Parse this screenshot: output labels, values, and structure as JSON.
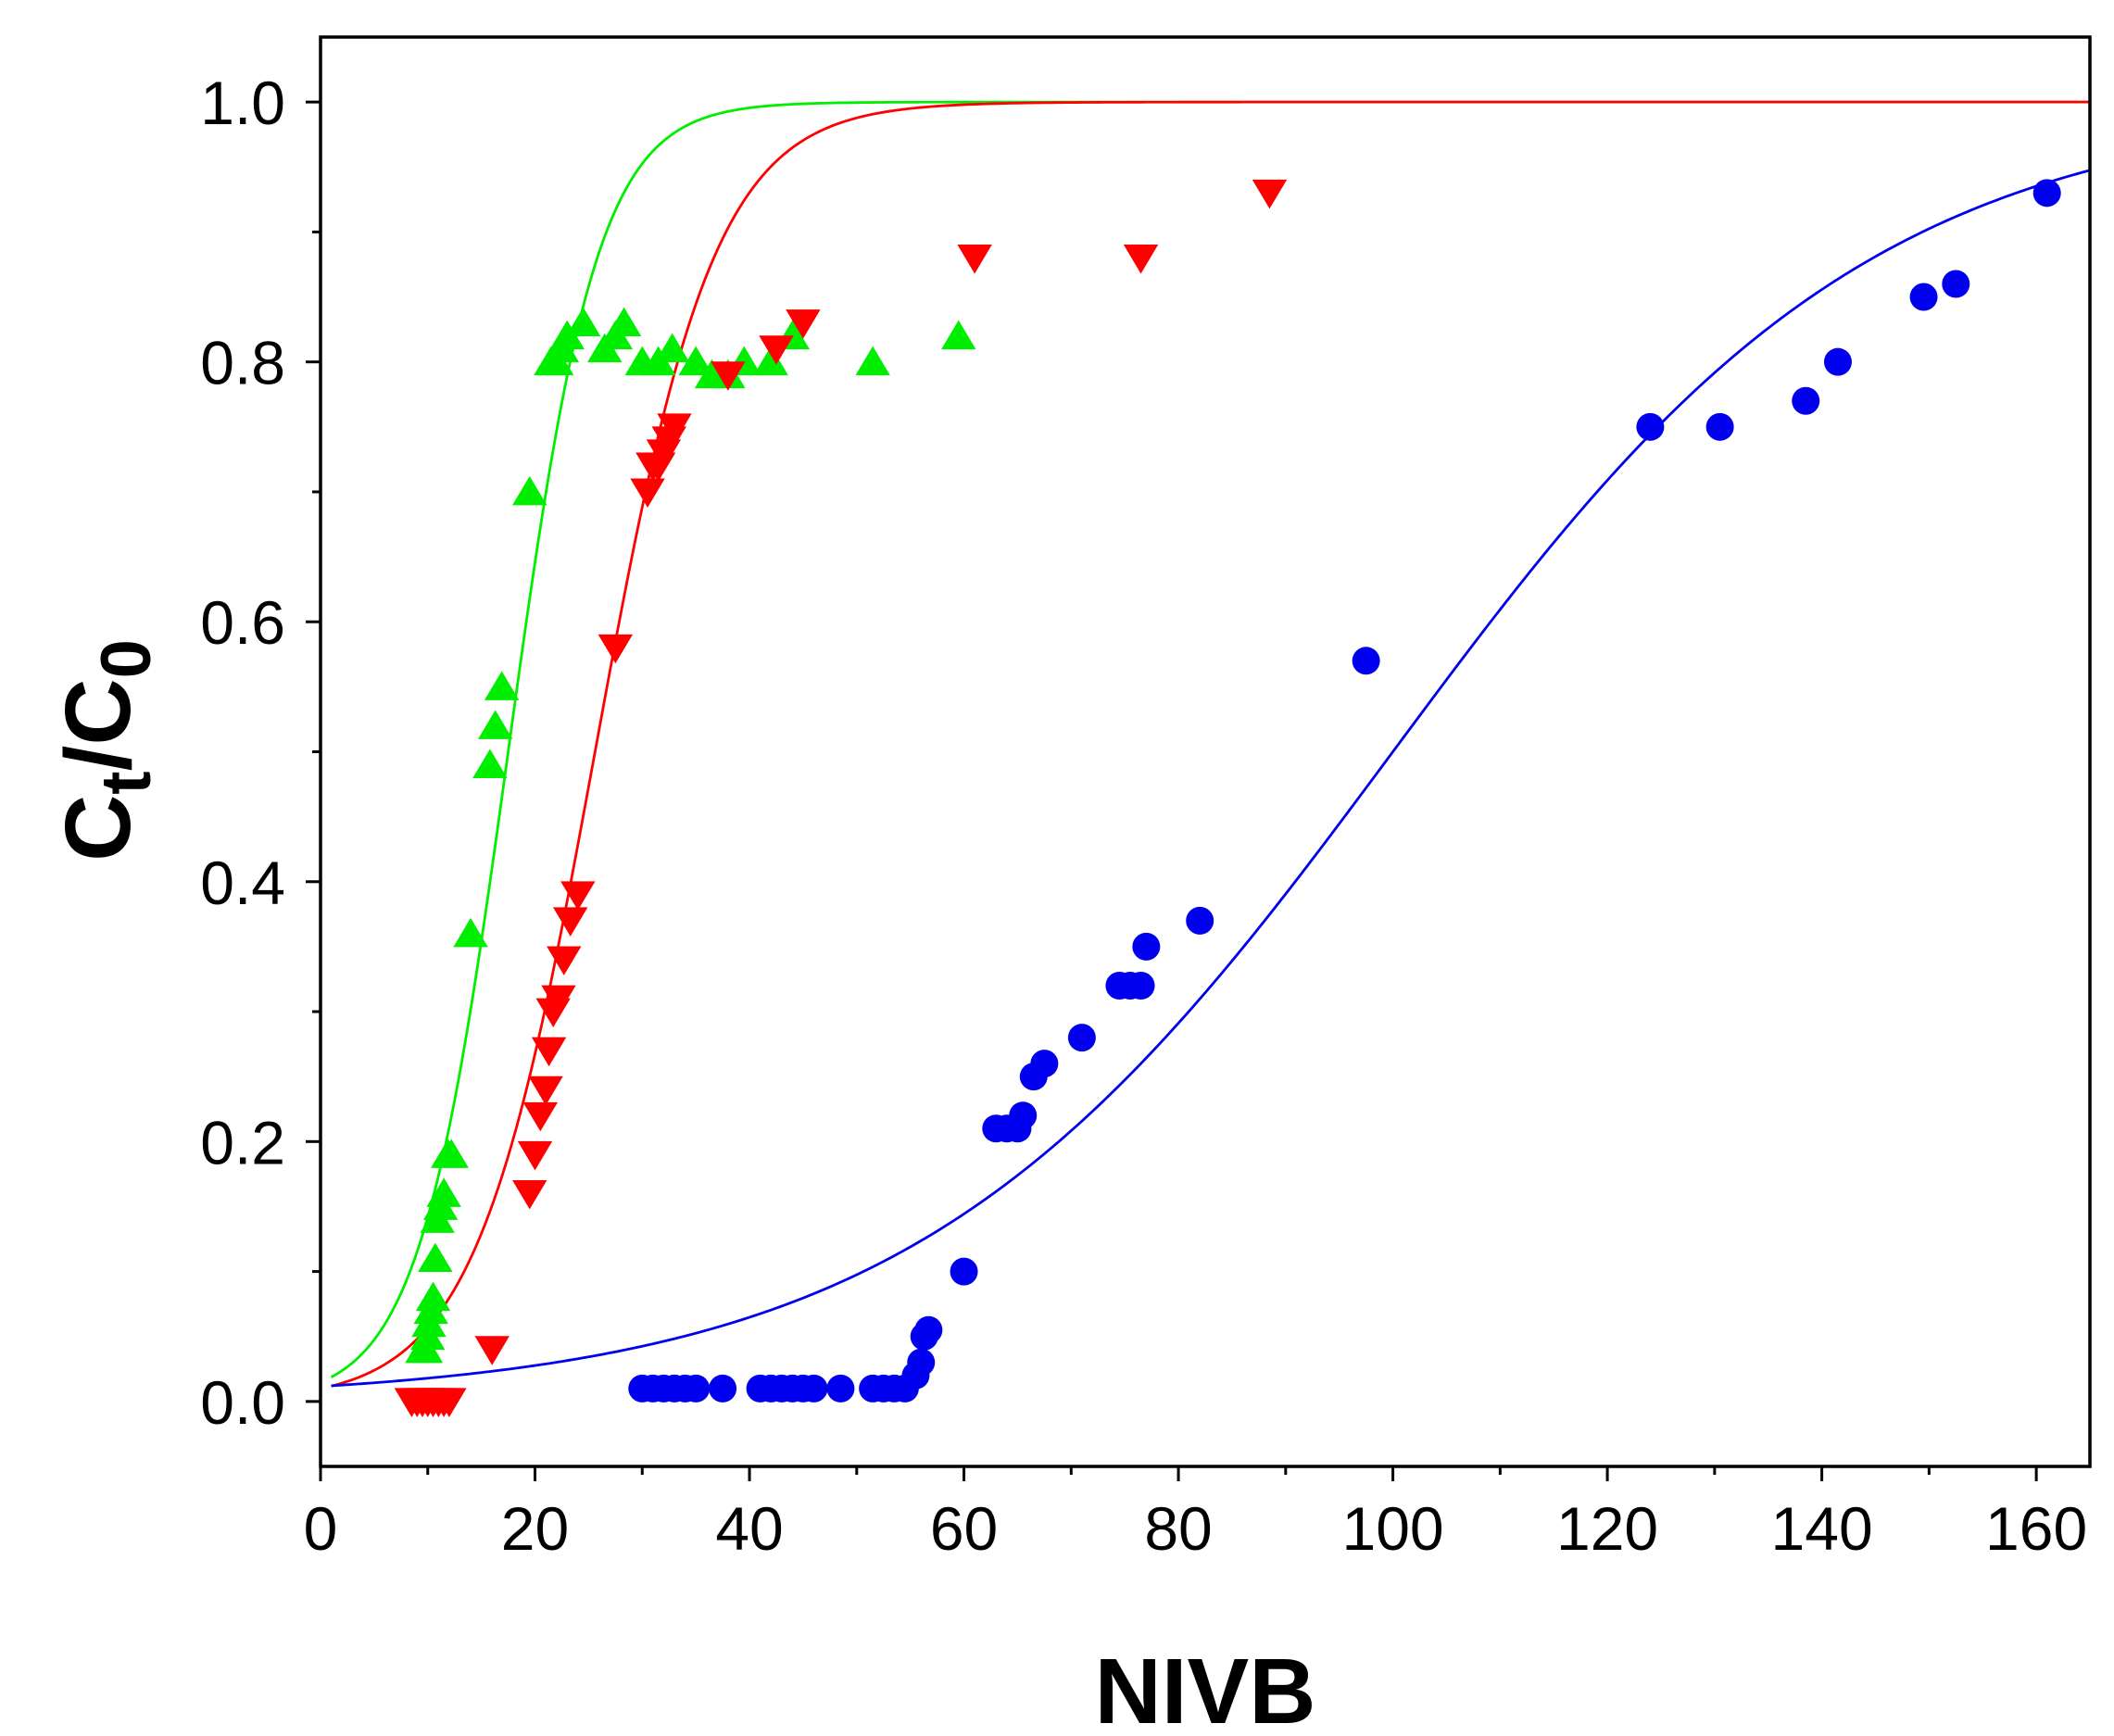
{
  "chart_data": {
    "type": "scatter",
    "title": "",
    "xlabel": "NIVB",
    "ylabel": {
      "main": "C",
      "sub1": "t",
      "slash": "/C",
      "sub2": "0"
    },
    "xlim": [
      0,
      165
    ],
    "ylim": [
      -0.05,
      1.05
    ],
    "x_ticks": [
      0,
      20,
      40,
      60,
      80,
      100,
      120,
      140,
      160
    ],
    "x_tick_labels": [
      "0",
      "20",
      "40",
      "60",
      "80",
      "100",
      "120",
      "140",
      "160"
    ],
    "y_ticks": [
      0.0,
      0.2,
      0.4,
      0.6,
      0.8,
      1.0
    ],
    "y_tick_labels": [
      "0.0",
      "0.2",
      "0.4",
      "0.6",
      "0.8",
      "1.0"
    ],
    "grid": false,
    "series": [
      {
        "name": "green",
        "marker": "triangle-up",
        "color": "#00ee00",
        "x": [
          9.5,
          9.8,
          10,
          10.1,
          10.3,
          10.5,
          10.7,
          10.9,
          11.2,
          11.5,
          11.9,
          12.2,
          14,
          15.8,
          16.3,
          16.9,
          19.5,
          21.5,
          22,
          22.5,
          23,
          24.5,
          26.5,
          27.5,
          28.3,
          30,
          31.5,
          32.8,
          35,
          36.5,
          38,
          39.5,
          42,
          44,
          51.5,
          59.5
        ],
        "y": [
          0.04,
          0.04,
          0.05,
          0.06,
          0.07,
          0.08,
          0.11,
          0.14,
          0.15,
          0.16,
          0.19,
          0.19,
          0.36,
          0.49,
          0.52,
          0.55,
          0.7,
          0.8,
          0.8,
          0.81,
          0.82,
          0.83,
          0.81,
          0.82,
          0.83,
          0.8,
          0.8,
          0.81,
          0.8,
          0.79,
          0.79,
          0.8,
          0.8,
          0.82,
          0.8,
          0.82
        ]
      },
      {
        "name": "red",
        "marker": "triangle-down",
        "color": "#ff0000",
        "x": [
          8.5,
          9,
          9.5,
          10,
          10.5,
          11,
          11.5,
          12,
          16,
          19.5,
          20,
          20.5,
          21,
          21.3,
          21.7,
          22.2,
          22.7,
          23.3,
          24,
          27.5,
          30.5,
          31,
          31.5,
          32,
          32.5,
          33,
          38,
          42.5,
          45,
          61,
          76.5,
          88.5
        ],
        "y": [
          0,
          0,
          0,
          0,
          0,
          0,
          0,
          0,
          0.04,
          0.16,
          0.19,
          0.22,
          0.24,
          0.27,
          0.3,
          0.31,
          0.34,
          0.37,
          0.39,
          0.58,
          0.7,
          0.72,
          0.72,
          0.73,
          0.74,
          0.75,
          0.79,
          0.81,
          0.83,
          0.88,
          0.88,
          0.93
        ]
      },
      {
        "name": "blue",
        "marker": "circle",
        "color": "#0000ee",
        "x": [
          30,
          31,
          32,
          33,
          34,
          35,
          37.5,
          41,
          42,
          43,
          44,
          45,
          46,
          48.5,
          51.5,
          52.5,
          53.5,
          54.5,
          55.5,
          56,
          56.3,
          56.7,
          60,
          63,
          64,
          65,
          65.5,
          66.5,
          67.5,
          71,
          74.5,
          75.5,
          76.5,
          77,
          82,
          97.5,
          124,
          130.5,
          138.5,
          141.5,
          149.5,
          152.5,
          161
        ],
        "y": [
          0.01,
          0.01,
          0.01,
          0.01,
          0.01,
          0.01,
          0.01,
          0.01,
          0.01,
          0.01,
          0.01,
          0.01,
          0.01,
          0.01,
          0.01,
          0.01,
          0.01,
          0.01,
          0.02,
          0.03,
          0.05,
          0.055,
          0.1,
          0.21,
          0.21,
          0.21,
          0.22,
          0.25,
          0.26,
          0.28,
          0.32,
          0.32,
          0.32,
          0.35,
          0.37,
          0.57,
          0.75,
          0.75,
          0.77,
          0.8,
          0.85,
          0.86,
          0.93
        ]
      }
    ],
    "fit_curves": [
      {
        "name": "green-fit",
        "color": "#00ee00",
        "model": "logistic",
        "x0": 17.5,
        "k": 0.24,
        "xmin": 1,
        "xmax": 165
      },
      {
        "name": "red-fit",
        "color": "#ff0000",
        "model": "logistic",
        "x0": 25.6,
        "k": 0.18,
        "xmin": 1,
        "xmax": 165
      },
      {
        "name": "blue-fit",
        "color": "#0000ee",
        "model": "logistic",
        "x0": 100,
        "k": 0.0445,
        "xmin": 1,
        "xmax": 165
      }
    ]
  }
}
